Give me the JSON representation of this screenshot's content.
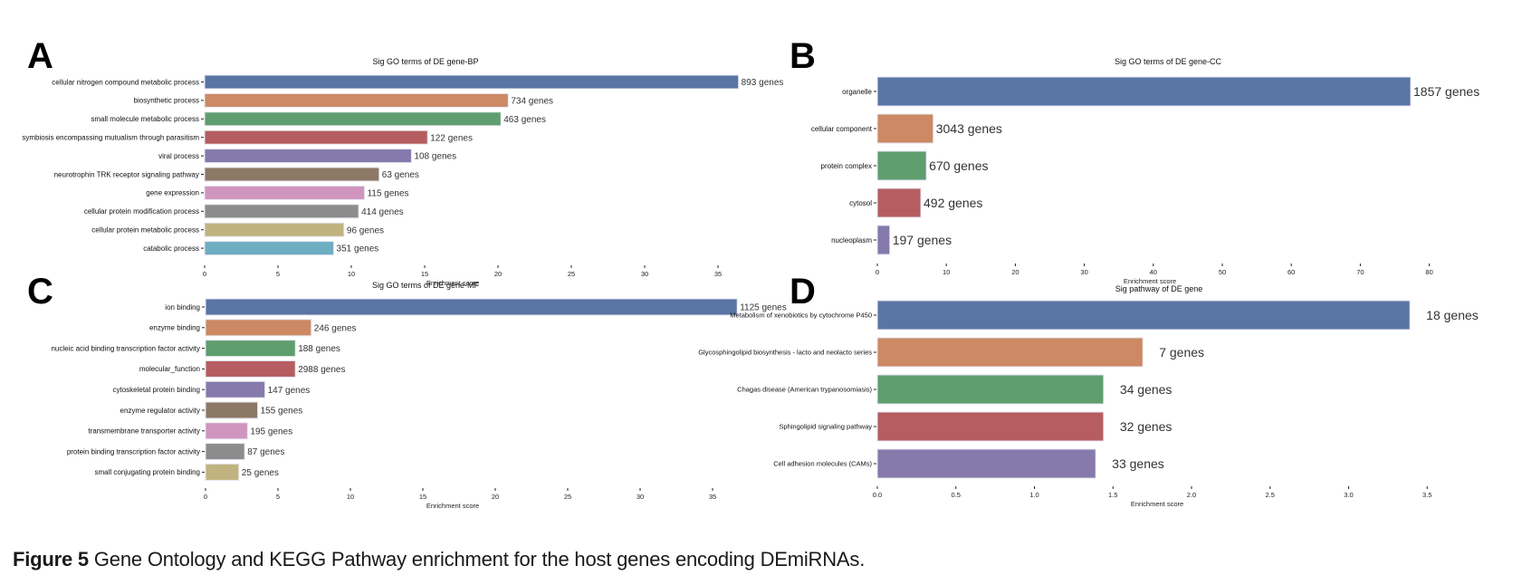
{
  "figure": {
    "caption_label": "Figure 5",
    "caption_text": " Gene Ontology and KEGG Pathway enrichment for the host genes encoding DEmiRNAs.",
    "palette": [
      "#5975a4",
      "#cc8963",
      "#5f9e6e",
      "#b55d60",
      "#857aab",
      "#8d7866",
      "#d095bf",
      "#8c8c8c",
      "#c1b37f",
      "#6fadc2"
    ]
  },
  "chart_data": [
    {
      "panel": "A",
      "type": "bar",
      "orientation": "horizontal",
      "title": "Sig GO terms of DE gene-BP",
      "xlabel": "Enrichment score",
      "ylabel": "",
      "xlim": [
        0,
        37
      ],
      "xticks": [
        0,
        5,
        10,
        15,
        20,
        25,
        30,
        35
      ],
      "xtick_labels": [
        "0",
        "5",
        "10",
        "15",
        "20",
        "25",
        "30",
        "35"
      ],
      "grid": false,
      "categories": [
        "cellular nitrogen compound metabolic process",
        "biosynthetic process",
        "small molecule metabolic process",
        "symbiosis encompassing mutualism through parasitism",
        "viral process",
        "neurotrophin TRK receptor signaling pathway",
        "gene expression",
        "cellular protein modification process",
        "cellular protein metabolic process",
        "catabolic process"
      ],
      "values": [
        36.4,
        20.7,
        20.2,
        15.2,
        14.1,
        11.9,
        10.9,
        10.5,
        9.5,
        8.8
      ],
      "data_labels": [
        "893 genes",
        "734 genes",
        "463 genes",
        "122 genes",
        "108 genes",
        "63 genes",
        "115 genes",
        "414 genes",
        "96 genes",
        "351 genes"
      ]
    },
    {
      "panel": "B",
      "type": "bar",
      "orientation": "horizontal",
      "title": "Sig GO terms of DE gene-CC",
      "xlabel": "Enrichment score",
      "ylabel": "",
      "xlim": [
        0,
        80
      ],
      "xticks": [
        0,
        10,
        20,
        30,
        40,
        50,
        60,
        70,
        80
      ],
      "xtick_labels": [
        "0",
        "10",
        "20",
        "30",
        "40",
        "50",
        "60",
        "70",
        "80"
      ],
      "grid": false,
      "categories": [
        "organelle",
        "cellular component",
        "protein complex",
        "cytosol",
        "nucleoplasm"
      ],
      "values": [
        77.3,
        8.1,
        7.1,
        6.3,
        1.8
      ],
      "data_labels": [
        "1857 genes",
        "3043 genes",
        "670 genes",
        "492 genes",
        "197 genes"
      ]
    },
    {
      "panel": "C",
      "type": "bar",
      "orientation": "horizontal",
      "title": "Sig GO terms of DE gene-MF",
      "xlabel": "Enrichment score",
      "ylabel": "",
      "xlim": [
        0,
        37
      ],
      "xticks": [
        0,
        5,
        10,
        15,
        20,
        25,
        30,
        35
      ],
      "xtick_labels": [
        "0",
        "5",
        "10",
        "15",
        "20",
        "25",
        "30",
        "35"
      ],
      "grid": false,
      "categories": [
        "ion binding",
        "enzyme binding",
        "nucleic acid binding transcription factor activity",
        "molecular_function",
        "cytoskeletal protein binding",
        "enzyme regulator activity",
        "transmembrane transporter activity",
        "protein binding transcription factor activity",
        "small conjugating protein binding"
      ],
      "values": [
        36.7,
        7.3,
        6.2,
        6.2,
        4.1,
        3.6,
        2.9,
        2.7,
        2.3
      ],
      "data_labels": [
        "1125 genes",
        "246 genes",
        "188 genes",
        "2988 genes",
        "147 genes",
        "155 genes",
        "195 genes",
        "87 genes",
        "25 genes"
      ]
    },
    {
      "panel": "D",
      "type": "bar",
      "orientation": "horizontal",
      "title": "Sig pathway of DE gene",
      "xlabel": "Enrichment score",
      "ylabel": "",
      "xlim": [
        0,
        3.5
      ],
      "xticks": [
        0,
        0.5,
        1.0,
        1.5,
        2.0,
        2.5,
        3.0,
        3.5
      ],
      "xtick_labels": [
        "0.0",
        "0.5",
        "1.0",
        "1.5",
        "2.0",
        "2.5",
        "3.0",
        "3.5"
      ],
      "grid": false,
      "categories": [
        "Metabolism of xenobiotics by cytochrome P450",
        "Glycosphingolipid biosynthesis - lacto and neolacto series",
        "Chagas disease (American trypanosomiasis)",
        "Sphingolipid signaling pathway",
        "Cell adhesion molecules (CAMs)"
      ],
      "values": [
        3.39,
        1.69,
        1.44,
        1.44,
        1.39
      ],
      "data_labels": [
        "18 genes",
        "7 genes",
        "34 genes",
        "32 genes",
        "33 genes"
      ]
    }
  ]
}
